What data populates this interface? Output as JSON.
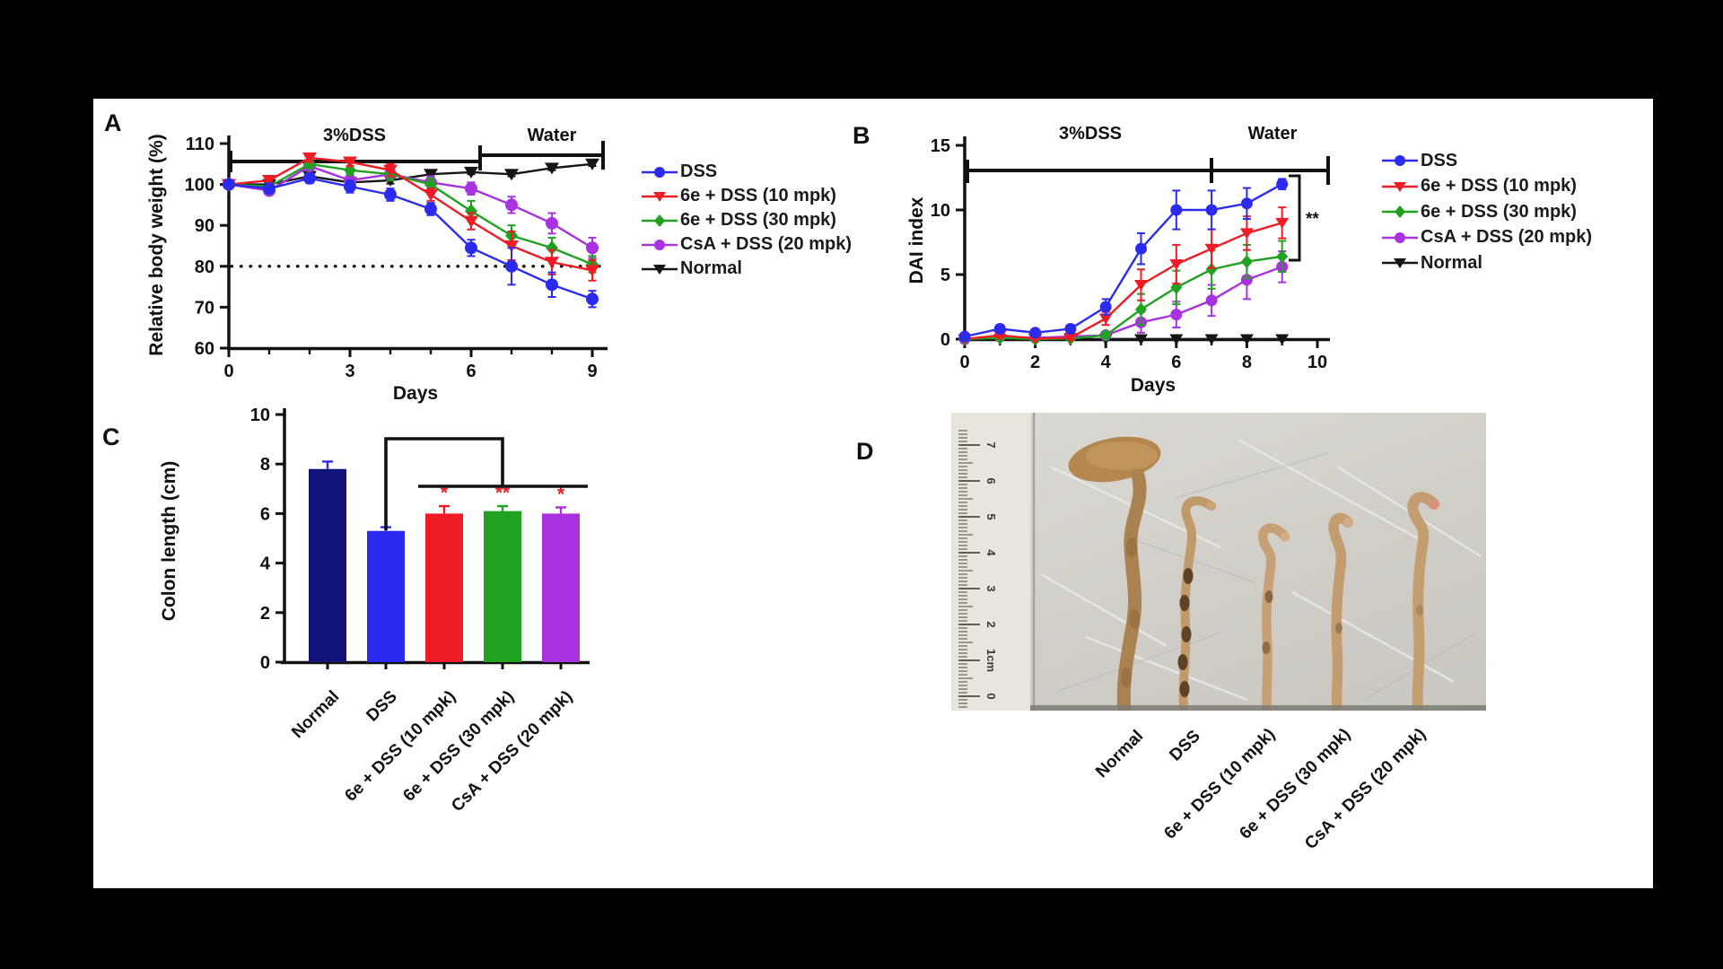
{
  "figure": {
    "background": "#000000",
    "panel_labels": {
      "a": "A",
      "b": "B",
      "c": "C",
      "d": "D"
    }
  },
  "legend": {
    "items": [
      {
        "marker": "circle",
        "color": "#2b2bf0",
        "bold": "",
        "text": "DSS"
      },
      {
        "marker": "triangle-down",
        "color": "#ee1c24",
        "bold": "6e",
        "text": " + DSS (10 mpk)"
      },
      {
        "marker": "diamond",
        "color": "#21a121",
        "bold": "6e",
        "text": " + DSS (30 mpk)"
      },
      {
        "marker": "circle",
        "color": "#a832e0",
        "bold": "",
        "text": "CsA + DSS (20 mpk)"
      },
      {
        "marker": "triangle-down",
        "color": "#151515",
        "bold": "",
        "text": "Normal"
      }
    ]
  },
  "panel_d": {
    "ruler_numbers": [
      "7",
      "6",
      "5",
      "4",
      "3",
      "2",
      "1cm",
      "0"
    ]
  },
  "chart_data": [
    {
      "id": "A",
      "type": "line",
      "title": "",
      "xlabel": "Days",
      "ylabel": "Relative body weight (%)",
      "x": [
        0,
        1,
        2,
        3,
        4,
        5,
        6,
        7,
        8,
        9
      ],
      "xticks": [
        0,
        3,
        6,
        9
      ],
      "xlim": [
        0,
        9
      ],
      "ylim": [
        60,
        110
      ],
      "yticks": [
        110,
        100,
        90,
        80,
        70,
        60
      ],
      "phase1": "3%DSS",
      "phase2": "Water",
      "reference_line_y": 80,
      "legend_position": "right",
      "series": [
        {
          "name": "DSS",
          "color": "#2b2bf0",
          "marker": "circle",
          "values": [
            100,
            99,
            101.5,
            99.5,
            97.5,
            94,
            84.5,
            80,
            75.5,
            72
          ],
          "errors": [
            0.5,
            0.8,
            1.2,
            1.5,
            1.5,
            1.5,
            2,
            4.5,
            3,
            2
          ]
        },
        {
          "name": "6e + DSS (10 mpk)",
          "color": "#ee1c24",
          "marker": "triangle-down",
          "values": [
            100,
            101,
            106.5,
            105.5,
            103.5,
            97.5,
            91,
            85,
            81,
            79
          ],
          "errors": [
            0.5,
            0.8,
            1,
            1,
            1.5,
            1.5,
            2,
            3.5,
            3,
            2.5
          ]
        },
        {
          "name": "6e + DSS (30 mpk)",
          "color": "#21a121",
          "marker": "diamond",
          "values": [
            100,
            99.5,
            105,
            103.5,
            102.5,
            100,
            93.5,
            87.5,
            84.5,
            80.5
          ],
          "errors": [
            0.5,
            0.8,
            1,
            1,
            1.5,
            1.5,
            2.5,
            2.5,
            2.5,
            2
          ]
        },
        {
          "name": "CsA + DSS (20 mpk)",
          "color": "#a832e0",
          "marker": "circle",
          "values": [
            100,
            98.5,
            104.5,
            101,
            102.5,
            100.5,
            99,
            95,
            90.5,
            84.5
          ],
          "errors": [
            0.5,
            1,
            1,
            1.5,
            1.5,
            1.5,
            1.5,
            2,
            2.5,
            2.5
          ]
        },
        {
          "name": "Normal",
          "color": "#151515",
          "marker": "triangle-down",
          "values": [
            100,
            100,
            102,
            100.5,
            101,
            102.5,
            103,
            102.5,
            104,
            105
          ],
          "errors": [
            0.3,
            0.5,
            0.8,
            0.8,
            0.8,
            0.5,
            0.5,
            0.5,
            0.5,
            0.5
          ]
        }
      ]
    },
    {
      "id": "B",
      "type": "line",
      "title": "",
      "xlabel": "Days",
      "ylabel": "DAI index",
      "x": [
        0,
        1,
        2,
        3,
        4,
        5,
        6,
        7,
        8,
        9
      ],
      "xticks": [
        0,
        2,
        4,
        6,
        8,
        10
      ],
      "xlim": [
        0,
        10
      ],
      "ylim": [
        0,
        15
      ],
      "yticks": [
        15,
        10,
        5,
        0
      ],
      "phase1": "3%DSS",
      "phase2": "Water",
      "significance": "**",
      "legend_position": "right",
      "series": [
        {
          "name": "DSS",
          "color": "#2b2bf0",
          "marker": "circle",
          "values": [
            0.2,
            0.8,
            0.5,
            0.8,
            2.5,
            7,
            10,
            10,
            10.5,
            12
          ],
          "errors": [
            0.2,
            0.3,
            0.2,
            0.3,
            0.6,
            1.2,
            1.5,
            1.5,
            1.2,
            0.4
          ]
        },
        {
          "name": "6e + DSS (10 mpk)",
          "color": "#ee1c24",
          "marker": "triangle-down",
          "values": [
            0,
            0.3,
            0.05,
            0.1,
            1.6,
            4.2,
            5.8,
            7,
            8.2,
            9
          ],
          "errors": [
            0,
            0.2,
            0.1,
            0.1,
            0.5,
            1.2,
            1.5,
            1.5,
            1.3,
            1.2
          ]
        },
        {
          "name": "6e + DSS (30 mpk)",
          "color": "#21a121",
          "marker": "diamond",
          "values": [
            0,
            0.1,
            0,
            0.05,
            0.3,
            2.3,
            4,
            5.4,
            6,
            6.4
          ],
          "errors": [
            0,
            0.1,
            0,
            0.1,
            0.2,
            1.2,
            1.3,
            1.5,
            1.3,
            1.2
          ]
        },
        {
          "name": "CsA + DSS (20 mpk)",
          "color": "#a832e0",
          "marker": "circle",
          "values": [
            0,
            0.2,
            0.1,
            0.2,
            0.3,
            1.3,
            1.9,
            3,
            4.6,
            5.6
          ],
          "errors": [
            0,
            0.1,
            0.1,
            0.1,
            0.2,
            0.8,
            1,
            1.2,
            1.5,
            1.2
          ]
        },
        {
          "name": "Normal",
          "color": "#151515",
          "marker": "triangle-down",
          "values": [
            0,
            0,
            0,
            0,
            0,
            0,
            0,
            0,
            0,
            0
          ],
          "errors": [
            0,
            0,
            0,
            0,
            0,
            0,
            0,
            0,
            0,
            0
          ]
        }
      ]
    },
    {
      "id": "C",
      "type": "bar",
      "title": "",
      "xlabel": "",
      "ylabel": "Colon length (cm)",
      "categories": [
        "Normal",
        "DSS",
        "6e + DSS (10 mpk)",
        "6e + DSS (30 mpk)",
        "CsA + DSS (20 mpk)"
      ],
      "values": [
        7.8,
        5.3,
        6.0,
        6.1,
        6.0
      ],
      "errors": [
        0.3,
        0.15,
        0.3,
        0.2,
        0.25
      ],
      "bar_colors": [
        "#12147a",
        "#2b2bf0",
        "#ee1c24",
        "#21a121",
        "#a832e0"
      ],
      "error_colors": [
        "#2b2bf0",
        "#2b2bf0",
        "#ee1c24",
        "#21a121",
        "#a832e0"
      ],
      "sig_labels": [
        "",
        "",
        "*",
        "**",
        "*"
      ],
      "sig_color": "#ee1c24",
      "ylim": [
        0,
        10
      ],
      "yticks": [
        10,
        8,
        6,
        4,
        2,
        0
      ]
    }
  ]
}
